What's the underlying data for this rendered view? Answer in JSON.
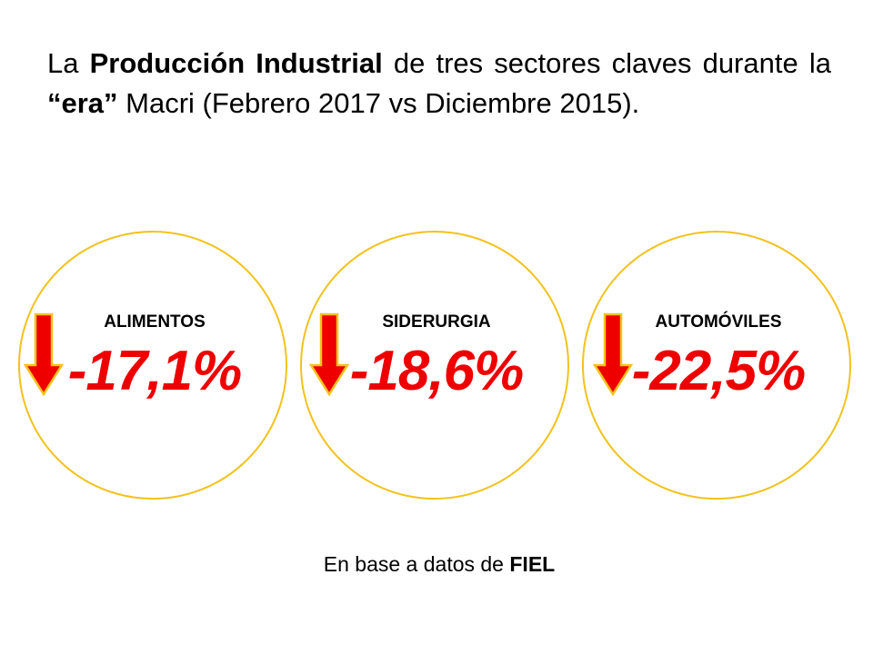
{
  "title": {
    "part1": "La ",
    "bold1": "Producción Industrial",
    "part2": " de tres sectores claves durante la ",
    "bold2": "“era”",
    "part3": " Macri (Febrero 2017 vs Diciembre 2015)."
  },
  "colors": {
    "circle_border": "#f2c21c",
    "value_text": "#ee0000",
    "arrow_fill": "#ee0000",
    "arrow_outline": "#f2c21c"
  },
  "sectors": [
    {
      "label": "ALIMENTOS",
      "value": "-17,1%",
      "icon": "down-arrow-icon"
    },
    {
      "label": "SIDERURGIA",
      "value": "-18,6%",
      "icon": "down-arrow-icon"
    },
    {
      "label": "AUTOMÓVILES",
      "value": "-22,5%",
      "icon": "down-arrow-icon"
    }
  ],
  "footer": {
    "prefix": "En base a datos de ",
    "source": "FIEL"
  }
}
